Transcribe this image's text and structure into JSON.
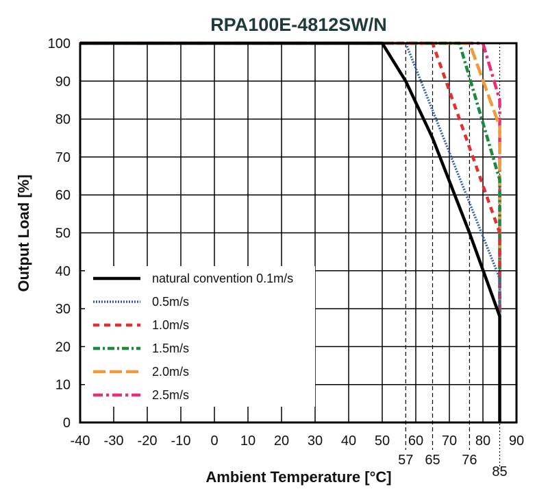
{
  "chart_data": {
    "type": "line",
    "title": "RPA100E-4812SW/N",
    "xlabel": "Ambient Temperature [°C]",
    "ylabel": "Output Load [%]",
    "xlim": [
      -40,
      90
    ],
    "ylim": [
      0,
      100
    ],
    "xticks": [
      -40,
      -30,
      -20,
      -10,
      0,
      10,
      20,
      30,
      40,
      50,
      60,
      70,
      80,
      90
    ],
    "yticks": [
      0,
      10,
      20,
      30,
      40,
      50,
      60,
      70,
      80,
      90,
      100
    ],
    "grid": true,
    "legend_position": "bottom-left",
    "reference_lines": [
      {
        "x": 57,
        "label": "57"
      },
      {
        "x": 65,
        "label": "65"
      },
      {
        "x": 76,
        "label": "76"
      },
      {
        "x": 85,
        "label": "85"
      }
    ],
    "series": [
      {
        "name": "natural convention 0.1m/s",
        "style": "solid",
        "color": "#000000",
        "x": [
          -40,
          50,
          57,
          65,
          76,
          85,
          85
        ],
        "y": [
          100,
          100,
          90,
          75,
          50,
          28,
          0
        ]
      },
      {
        "name": "0.5m/s",
        "style": "dotted",
        "color": "#2f5fb0",
        "x": [
          -40,
          57,
          85,
          85
        ],
        "y": [
          100,
          100,
          38,
          28
        ]
      },
      {
        "name": "1.0m/s",
        "style": "dashed",
        "color": "#e03030",
        "x": [
          -40,
          65,
          85,
          85
        ],
        "y": [
          100,
          100,
          50,
          28
        ]
      },
      {
        "name": "1.5m/s",
        "style": "dashdot",
        "color": "#1a8a3c",
        "x": [
          -40,
          73,
          85,
          85
        ],
        "y": [
          100,
          100,
          64,
          28
        ]
      },
      {
        "name": "2.0m/s",
        "style": "longdash",
        "color": "#f29a3a",
        "x": [
          -40,
          76,
          85,
          85
        ],
        "y": [
          100,
          100,
          78,
          28
        ]
      },
      {
        "name": "2.5m/s",
        "style": "dashdot-long",
        "color": "#e6307a",
        "x": [
          -40,
          80,
          85,
          85
        ],
        "y": [
          100,
          100,
          85,
          28
        ]
      }
    ]
  }
}
